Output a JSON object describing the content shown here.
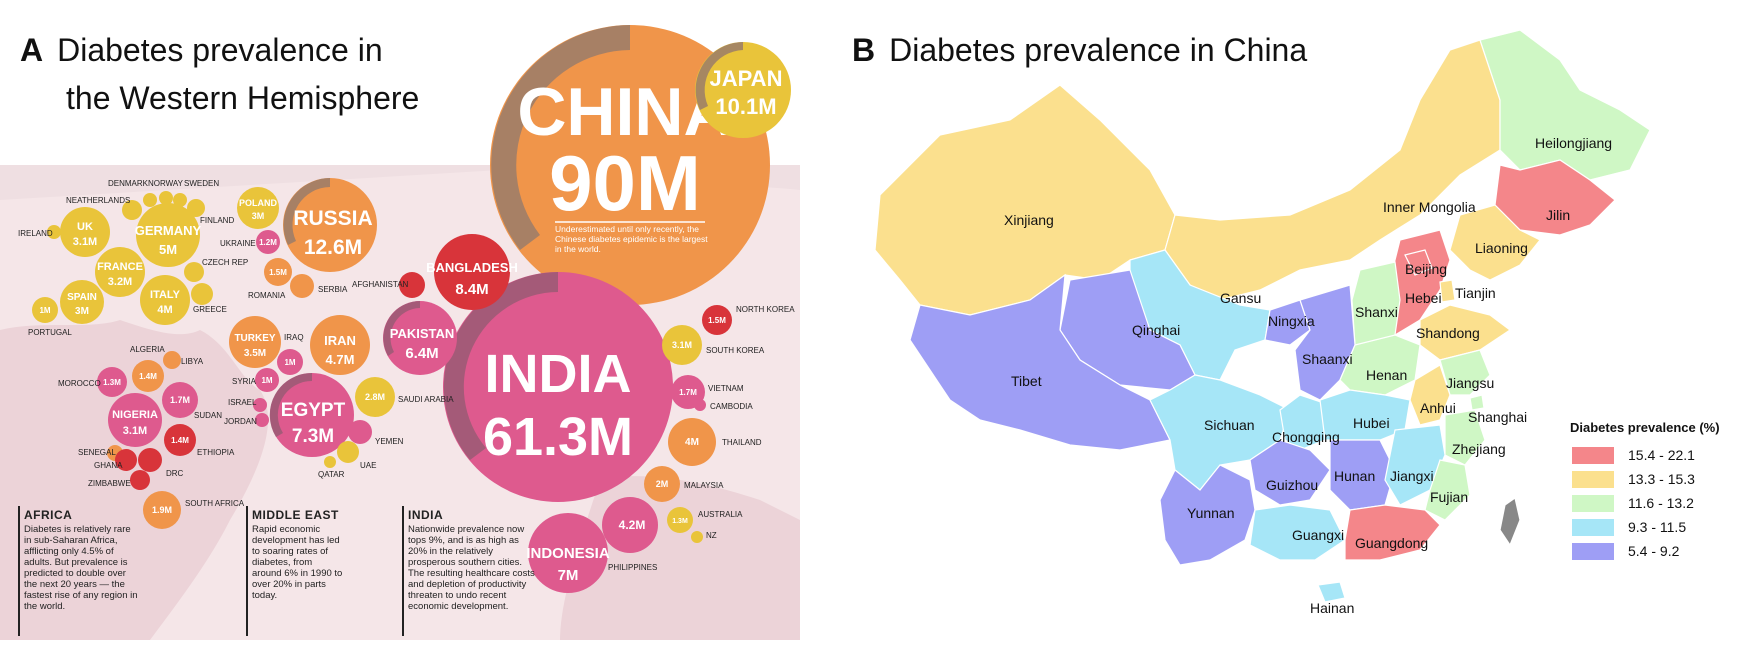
{
  "panelA": {
    "letter": "A",
    "title_line1": "Diabetes prevalence in",
    "title_line2": "the Western Hemisphere",
    "china": {
      "name": "CHINA",
      "value": "90M",
      "note": "Underestimated until only recently, the Chinese diabetes epidemic is the largest in the world."
    },
    "india": {
      "name": "INDIA",
      "value": "61.3M"
    },
    "japan": {
      "name": "JAPAN",
      "value": "10.1M"
    },
    "bubbles": [
      {
        "name": "RUSSIA",
        "value": "12.6M"
      },
      {
        "name": "BANGLADESH",
        "value": "8.4M"
      },
      {
        "name": "PAKISTAN",
        "value": "6.4M"
      },
      {
        "name": "EGYPT",
        "value": "7.3M"
      },
      {
        "name": "IRAN",
        "value": "4.7M"
      },
      {
        "name": "TURKEY",
        "value": "3.5M"
      },
      {
        "name": "INDONESIA",
        "value": "7M"
      },
      {
        "name": "GERMANY",
        "value": "5M"
      },
      {
        "name": "UK",
        "value": "3.1M"
      },
      {
        "name": "FRANCE",
        "value": "3.2M"
      },
      {
        "name": "ITALY",
        "value": "4M"
      },
      {
        "name": "SPAIN",
        "value": "3M"
      },
      {
        "name": "POLAND",
        "value": "3M"
      },
      {
        "name": "NIGERIA",
        "value": "3.1M"
      }
    ],
    "small_values": [
      "1M",
      "1.2M",
      "1.5M",
      "1M",
      "1M",
      "1.3M",
      "1.4M",
      "1.7M",
      "1.4M",
      "1.9M",
      "2.8M",
      "3.1M",
      "1.7M",
      "4M",
      "2M",
      "1.3M",
      "4.2M",
      "1.5M"
    ],
    "country_labels": [
      "DENMARK",
      "NORWAY",
      "SWEDEN",
      "NEATHERLANDS",
      "FINLAND",
      "IRELAND",
      "UKRAINE",
      "CZECH REP",
      "GREECE",
      "PORTUGAL",
      "ROMANIA",
      "SERBIA",
      "AFGHANISTAN",
      "ALGERIA",
      "LIBYA",
      "MOROCCO",
      "SUDAN",
      "IRAQ",
      "SYRIA",
      "ISRAEL",
      "JORDAN",
      "SAUDI ARABIA",
      "YEMEN",
      "UAE",
      "QATAR",
      "SENEGAL",
      "GHANA",
      "ZIMBABWE",
      "DRC",
      "ETHIOPIA",
      "SOUTH AFRICA",
      "NORTH KOREA",
      "SOUTH KOREA",
      "VIETNAM",
      "CAMBODIA",
      "THAILAND",
      "MALAYSIA",
      "AUSTRALIA",
      "NZ",
      "PHILIPPINES"
    ],
    "regions": [
      {
        "head": "AFRICA",
        "body": "Diabetes is relatively rare in sub-Saharan Africa, afflicting only 4.5% of adults. But prevalence is predicted to double over the next 20 years — the fastest rise of any region in the world."
      },
      {
        "head": "MIDDLE EAST",
        "body": "Rapid economic development has led to soaring rates of diabetes, from around 6% in 1990 to over 20% in parts today."
      },
      {
        "head": "INDIA",
        "body": "Nationwide prevalence now tops 9%, and is as high as 20% in the relatively prosperous southern cities. The resulting healthcare costs and depletion of productivity threaten to undo recent economic development."
      }
    ]
  },
  "panelB": {
    "letter": "B",
    "title": "Diabetes prevalence in China",
    "provinces": [
      "Heilongjiang",
      "Jilin",
      "Liaoning",
      "Inner Mongolia",
      "Xinjiang",
      "Beijing",
      "Tianjin",
      "Hebei",
      "Gansu",
      "Qinghai",
      "Ningxia",
      "Shanxi",
      "Shandong",
      "Tibet",
      "Shaanxi",
      "Henan",
      "Jiangsu",
      "Anhui",
      "Shanghai",
      "Sichuan",
      "Chongqing",
      "Hubei",
      "Zhejiang",
      "Guizhou",
      "Hunan",
      "Jiangxi",
      "Fujian",
      "Yunnan",
      "Guangxi",
      "Guangdong",
      "Hainan"
    ],
    "legend": {
      "title": "Diabetes prevalence (%)",
      "items": [
        {
          "label": "15.4 - 22.1",
          "color": "#f4868a"
        },
        {
          "label": "13.3 - 15.3",
          "color": "#fbe08e"
        },
        {
          "label": "11.6 - 13.2",
          "color": "#cff7c5"
        },
        {
          "label": "9.3 - 11.5",
          "color": "#a6e6f7"
        },
        {
          "label": "5.4 - 9.2",
          "color": "#9e9ef5"
        }
      ]
    }
  }
}
